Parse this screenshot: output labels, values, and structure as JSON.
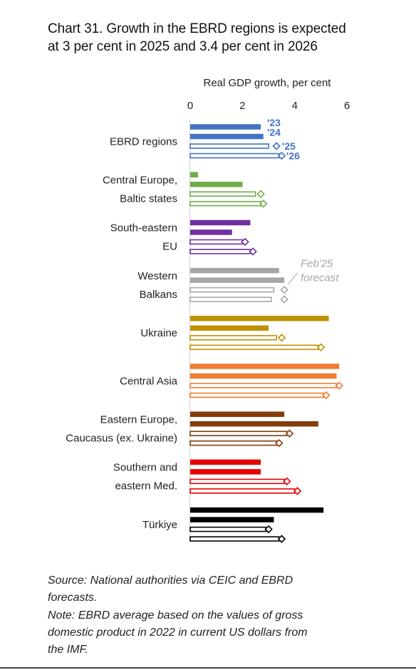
{
  "title_lines": [
    "Chart 31. Growth in the EBRD regions is expected",
    "at 3 per cent in 2025 and 3.4 per cent in 2026"
  ],
  "source_lines": [
    "Source: National authorities via CEIC and EBRD",
    "forecasts."
  ],
  "note_lines": [
    "Note: EBRD average based on the values of gross",
    "domestic product in 2022 in current US dollars from",
    "the IMF."
  ],
  "chart_data": {
    "type": "bar",
    "orientation": "horizontal",
    "axis_title": "Real GDP growth, per cent",
    "xlim": [
      0,
      6
    ],
    "xticks": [
      0,
      2,
      4,
      6
    ],
    "years": [
      "'23",
      "'24",
      "'25",
      "'26"
    ],
    "forecast_marker_label": [
      "Feb'25",
      "forecast"
    ],
    "groups": [
      {
        "label": [
          "EBRD regions"
        ],
        "color": "#4472c4",
        "values": [
          2.7,
          2.8,
          3.0,
          3.4
        ],
        "feb25_forecast": [
          null,
          null,
          3.3,
          3.5
        ]
      },
      {
        "label": [
          "Central Europe,",
          "Baltic states"
        ],
        "color": "#70ad47",
        "values": [
          0.3,
          2.0,
          2.5,
          2.8
        ],
        "feb25_forecast": [
          null,
          null,
          2.7,
          2.8
        ]
      },
      {
        "label": [
          "South-eastern",
          "EU"
        ],
        "color": "#7030a0",
        "values": [
          2.3,
          1.6,
          2.0,
          2.3
        ],
        "feb25_forecast": [
          null,
          null,
          2.1,
          2.4
        ]
      },
      {
        "label": [
          "Western",
          "Balkans"
        ],
        "color": "#a6a6a6",
        "values": [
          3.4,
          3.6,
          3.2,
          3.1
        ],
        "feb25_forecast": [
          null,
          null,
          3.6,
          3.6
        ]
      },
      {
        "label": [
          "Ukraine"
        ],
        "color": "#bf9000",
        "values": [
          5.3,
          3.0,
          3.3,
          4.9
        ],
        "feb25_forecast": [
          null,
          null,
          3.5,
          5.0
        ]
      },
      {
        "label": [
          "Central Asia"
        ],
        "color": "#ed7d31",
        "values": [
          5.7,
          5.6,
          5.6,
          5.1
        ],
        "feb25_forecast": [
          null,
          null,
          5.7,
          5.2
        ]
      },
      {
        "label": [
          "Eastern Europe,",
          "Caucasus (ex. Ukraine)"
        ],
        "color": "#843c0c",
        "values": [
          3.6,
          4.9,
          3.7,
          3.4
        ],
        "feb25_forecast": [
          null,
          null,
          3.8,
          3.4
        ]
      },
      {
        "label": [
          "Southern and",
          "eastern Med."
        ],
        "color": "#e60000",
        "values": [
          2.7,
          2.7,
          3.6,
          4.0
        ],
        "feb25_forecast": [
          null,
          null,
          3.7,
          4.1
        ]
      },
      {
        "label": [
          "Türkiye"
        ],
        "color": "#000000",
        "values": [
          5.1,
          3.2,
          2.9,
          3.4
        ],
        "feb25_forecast": [
          null,
          null,
          3.0,
          3.5
        ]
      }
    ]
  }
}
